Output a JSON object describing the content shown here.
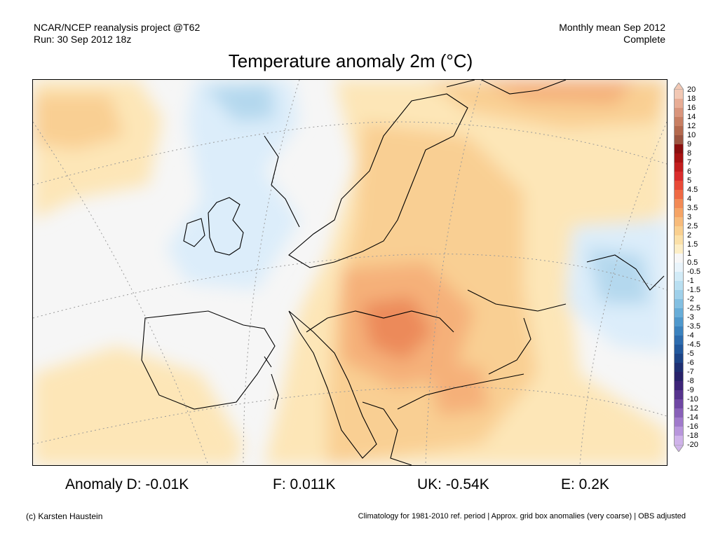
{
  "header": {
    "left_line1": "NCAR/NCEP reanalysis project @T62",
    "left_line2": "Run: 30 Sep 2012 18z",
    "right_line1": "Monthly mean Sep 2012",
    "right_line2": "Complete"
  },
  "title": "Temperature anomaly 2m (°C)",
  "stats": {
    "germany": "Anomaly D: -0.01K",
    "france": "F: 0.011K",
    "uk": "UK: -0.54K",
    "spain": "E: 0.2K"
  },
  "credit": "(c) Karsten Haustein",
  "footnote": "Climatology for 1981-2010 ref. period | Approx. grid box anomalies (very coarse) | OBS adjusted",
  "legend": {
    "labels": [
      "20",
      "18",
      "16",
      "14",
      "12",
      "10",
      "9",
      "8",
      "7",
      "6",
      "5",
      "4.5",
      "4",
      "3.5",
      "3",
      "2.5",
      "2",
      "1.5",
      "1",
      "0.5",
      "-0.5",
      "-1",
      "-1.5",
      "-2",
      "-2.5",
      "-3",
      "-3.5",
      "-4",
      "-4.5",
      "-5",
      "-6",
      "-7",
      "-8",
      "-9",
      "-10",
      "-12",
      "-14",
      "-16",
      "-18",
      "-20"
    ],
    "colors": [
      "#f2c8b4",
      "#e8ad95",
      "#d9957c",
      "#c87f63",
      "#b46a4f",
      "#9c5541",
      "#8a0f0f",
      "#a71313",
      "#c21e1e",
      "#d92d2d",
      "#e84a38",
      "#ef6a45",
      "#f28a56",
      "#f5a466",
      "#f7bb7b",
      "#f9cf8f",
      "#fbe0a8",
      "#fdeec6",
      "#f7f7f7",
      "#e9f4fb",
      "#d2ebf7",
      "#b9dff1",
      "#9fd0ea",
      "#83bfe1",
      "#68add8",
      "#4f98cc",
      "#3b82be",
      "#2d6cae",
      "#22589c",
      "#1d4487",
      "#1f2f72",
      "#28226a",
      "#3d2478",
      "#56338d",
      "#6f47a3",
      "#8860b8",
      "#a07acb",
      "#b896dc",
      "#cfb3ea"
    ]
  },
  "map": {
    "region": "Europe",
    "colors": {
      "neutral": "#f6f6f6",
      "warm_light": "#fde6b7",
      "warm_mid": "#f9cf93",
      "warm_strong": "#f5b079",
      "warm_peak": "#ec8a5a",
      "cool_light": "#dcedfa",
      "cool_mid": "#b4d8ee",
      "coast": "#000000",
      "graticule": "#9a9a9a"
    }
  }
}
